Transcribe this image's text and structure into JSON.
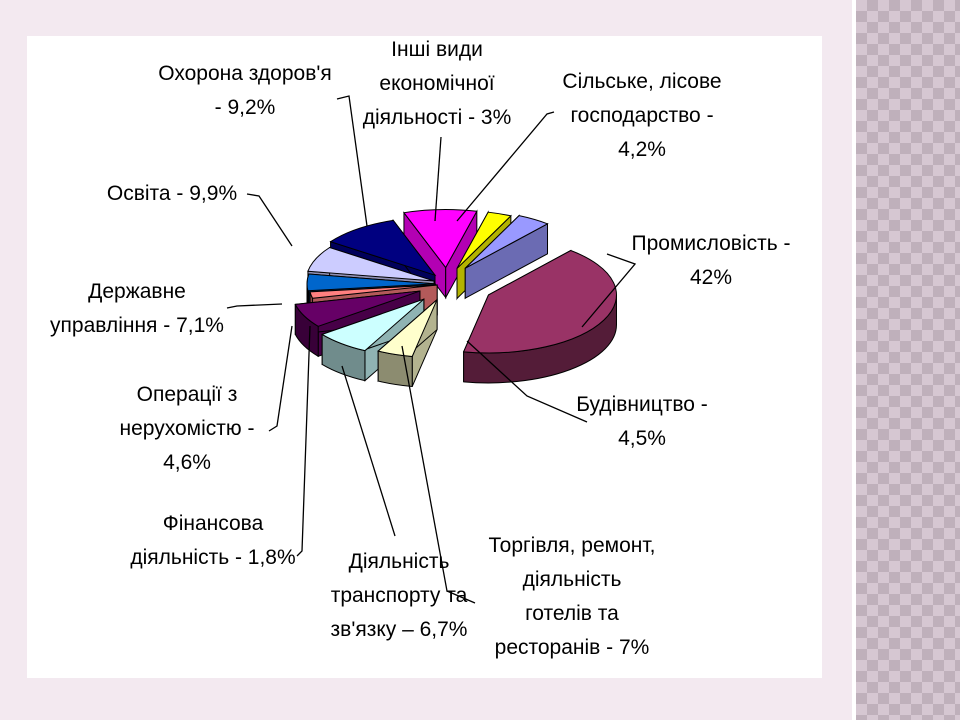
{
  "chart_data": {
    "type": "pie",
    "title": "",
    "style": "3d-exploded",
    "slices": [
      {
        "label": "Промисловість - 42%",
        "value": 42,
        "color": "#993366"
      },
      {
        "label": "Будівництво - 4,5%",
        "value": 4.5,
        "color": "#ffffcc"
      },
      {
        "label": "Торгівля, ремонт, діяльність готелів та ресторанів - 7%",
        "value": 7,
        "color": "#ccffff"
      },
      {
        "label": "Діяльність транспорту та зв'язку – 6,7%",
        "value": 6.7,
        "color": "#660066"
      },
      {
        "label": "Фінансова діяльність - 1,8%",
        "value": 1.8,
        "color": "#ff8080"
      },
      {
        "label": "Операції з нерухомістю - 4,6%",
        "value": 4.6,
        "color": "#0066cc"
      },
      {
        "label": "Державне управління - 7,1%",
        "value": 7.1,
        "color": "#ccccff"
      },
      {
        "label": "Освіта - 9,9%",
        "value": 9.9,
        "color": "#000080"
      },
      {
        "label": "Охорона здоров'я - 9,2%",
        "value": 9.2,
        "color": "#ff00ff"
      },
      {
        "label": "Інші види економічної діяльності - 3%",
        "value": 3,
        "color": "#ffff00"
      },
      {
        "label": "Сільське, лісове господарство - 4,2%",
        "value": 4.2,
        "color": "#9999ff"
      }
    ],
    "legend": "none",
    "data_labels": "outside-with-leader-lines"
  },
  "labels": {
    "industry": [
      "Промисловість -",
      "42%"
    ],
    "construction": [
      "Будівництво -",
      "4,5%"
    ],
    "trade": [
      "Торгівля, ремонт,",
      "діяльність",
      "готелів та",
      "ресторанів - 7%"
    ],
    "transport": [
      "Діяльність",
      "транспорту та",
      "зв'язку – 6,7%"
    ],
    "finance": [
      "Фінансова",
      "діяльність - 1,8%"
    ],
    "realestate": [
      "Операції з",
      "нерухомістю -",
      "4,6%"
    ],
    "government": [
      "Державне",
      "управління - 7,1%"
    ],
    "education": [
      "Освіта - 9,9%"
    ],
    "health": [
      "Охорона здоров'я",
      "- 9,2%"
    ],
    "other": [
      "Інші види",
      "економічної",
      "діяльності - 3%"
    ],
    "agriculture": [
      "Сільське, лісове",
      "господарство -",
      "4,2%"
    ]
  }
}
